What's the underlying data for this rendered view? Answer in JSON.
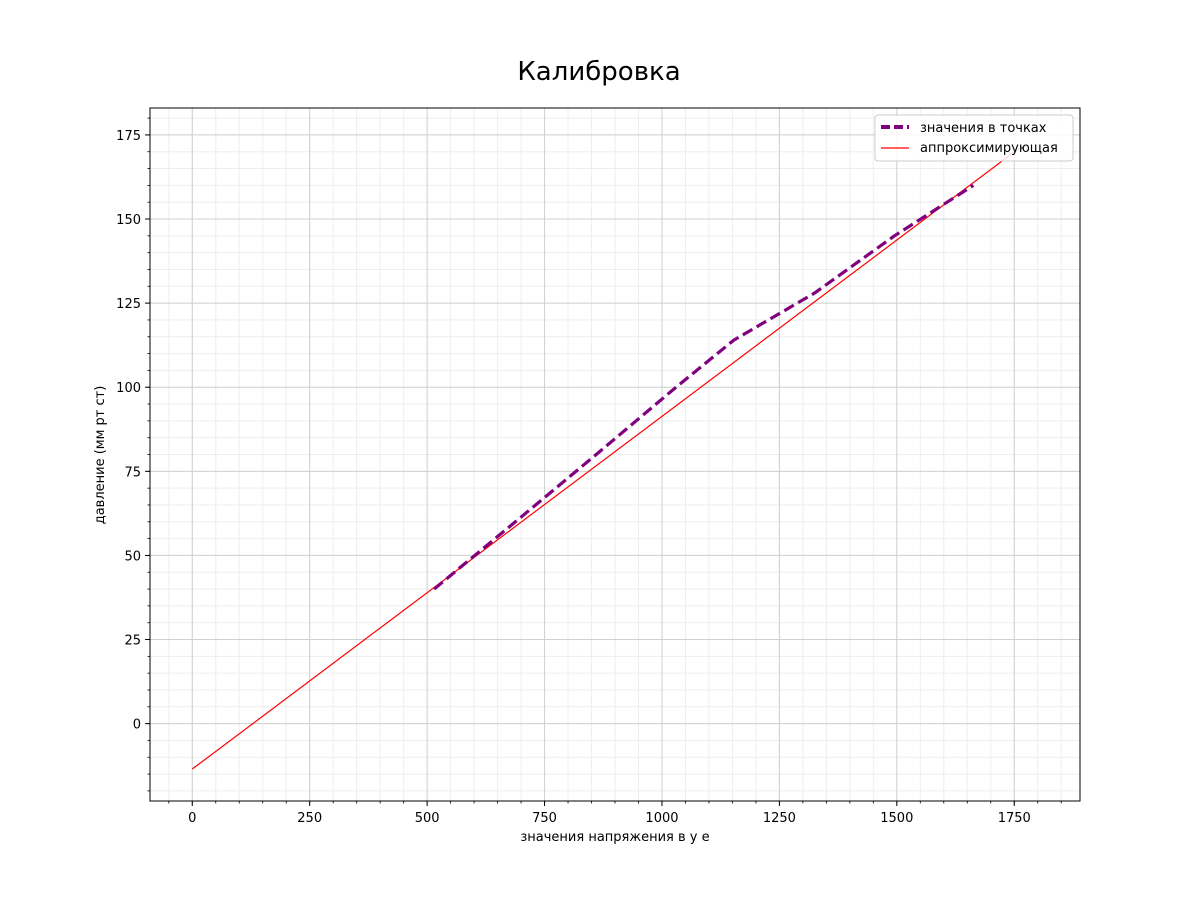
{
  "chart_data": {
    "type": "line",
    "title": "Калибровка",
    "xlabel": "значения напряжения в у е",
    "ylabel": "давление (мм рт ст)",
    "xlim": [
      -90,
      1890
    ],
    "ylim": [
      -23,
      183
    ],
    "xticks": [
      0,
      250,
      500,
      750,
      1000,
      1250,
      1500,
      1750
    ],
    "yticks": [
      0,
      25,
      50,
      75,
      100,
      125,
      150,
      175
    ],
    "x_minor_step": 50,
    "y_minor_step": 5,
    "grid": true,
    "legend_position": "upper right",
    "series": [
      {
        "name": "значения в точках",
        "color": "#800080",
        "style": "dashed",
        "points": [
          [
            515,
            40
          ],
          [
            688,
            60
          ],
          [
            860,
            80
          ],
          [
            1030,
            100
          ],
          [
            1153,
            114
          ],
          [
            1325,
            128
          ],
          [
            1495,
            145
          ],
          [
            1663,
            160
          ]
        ]
      },
      {
        "name": "аппроксимирующая",
        "color": "#ff0000",
        "style": "solid",
        "points": [
          [
            0,
            -13.5
          ],
          [
            1760,
            171
          ]
        ]
      }
    ]
  }
}
